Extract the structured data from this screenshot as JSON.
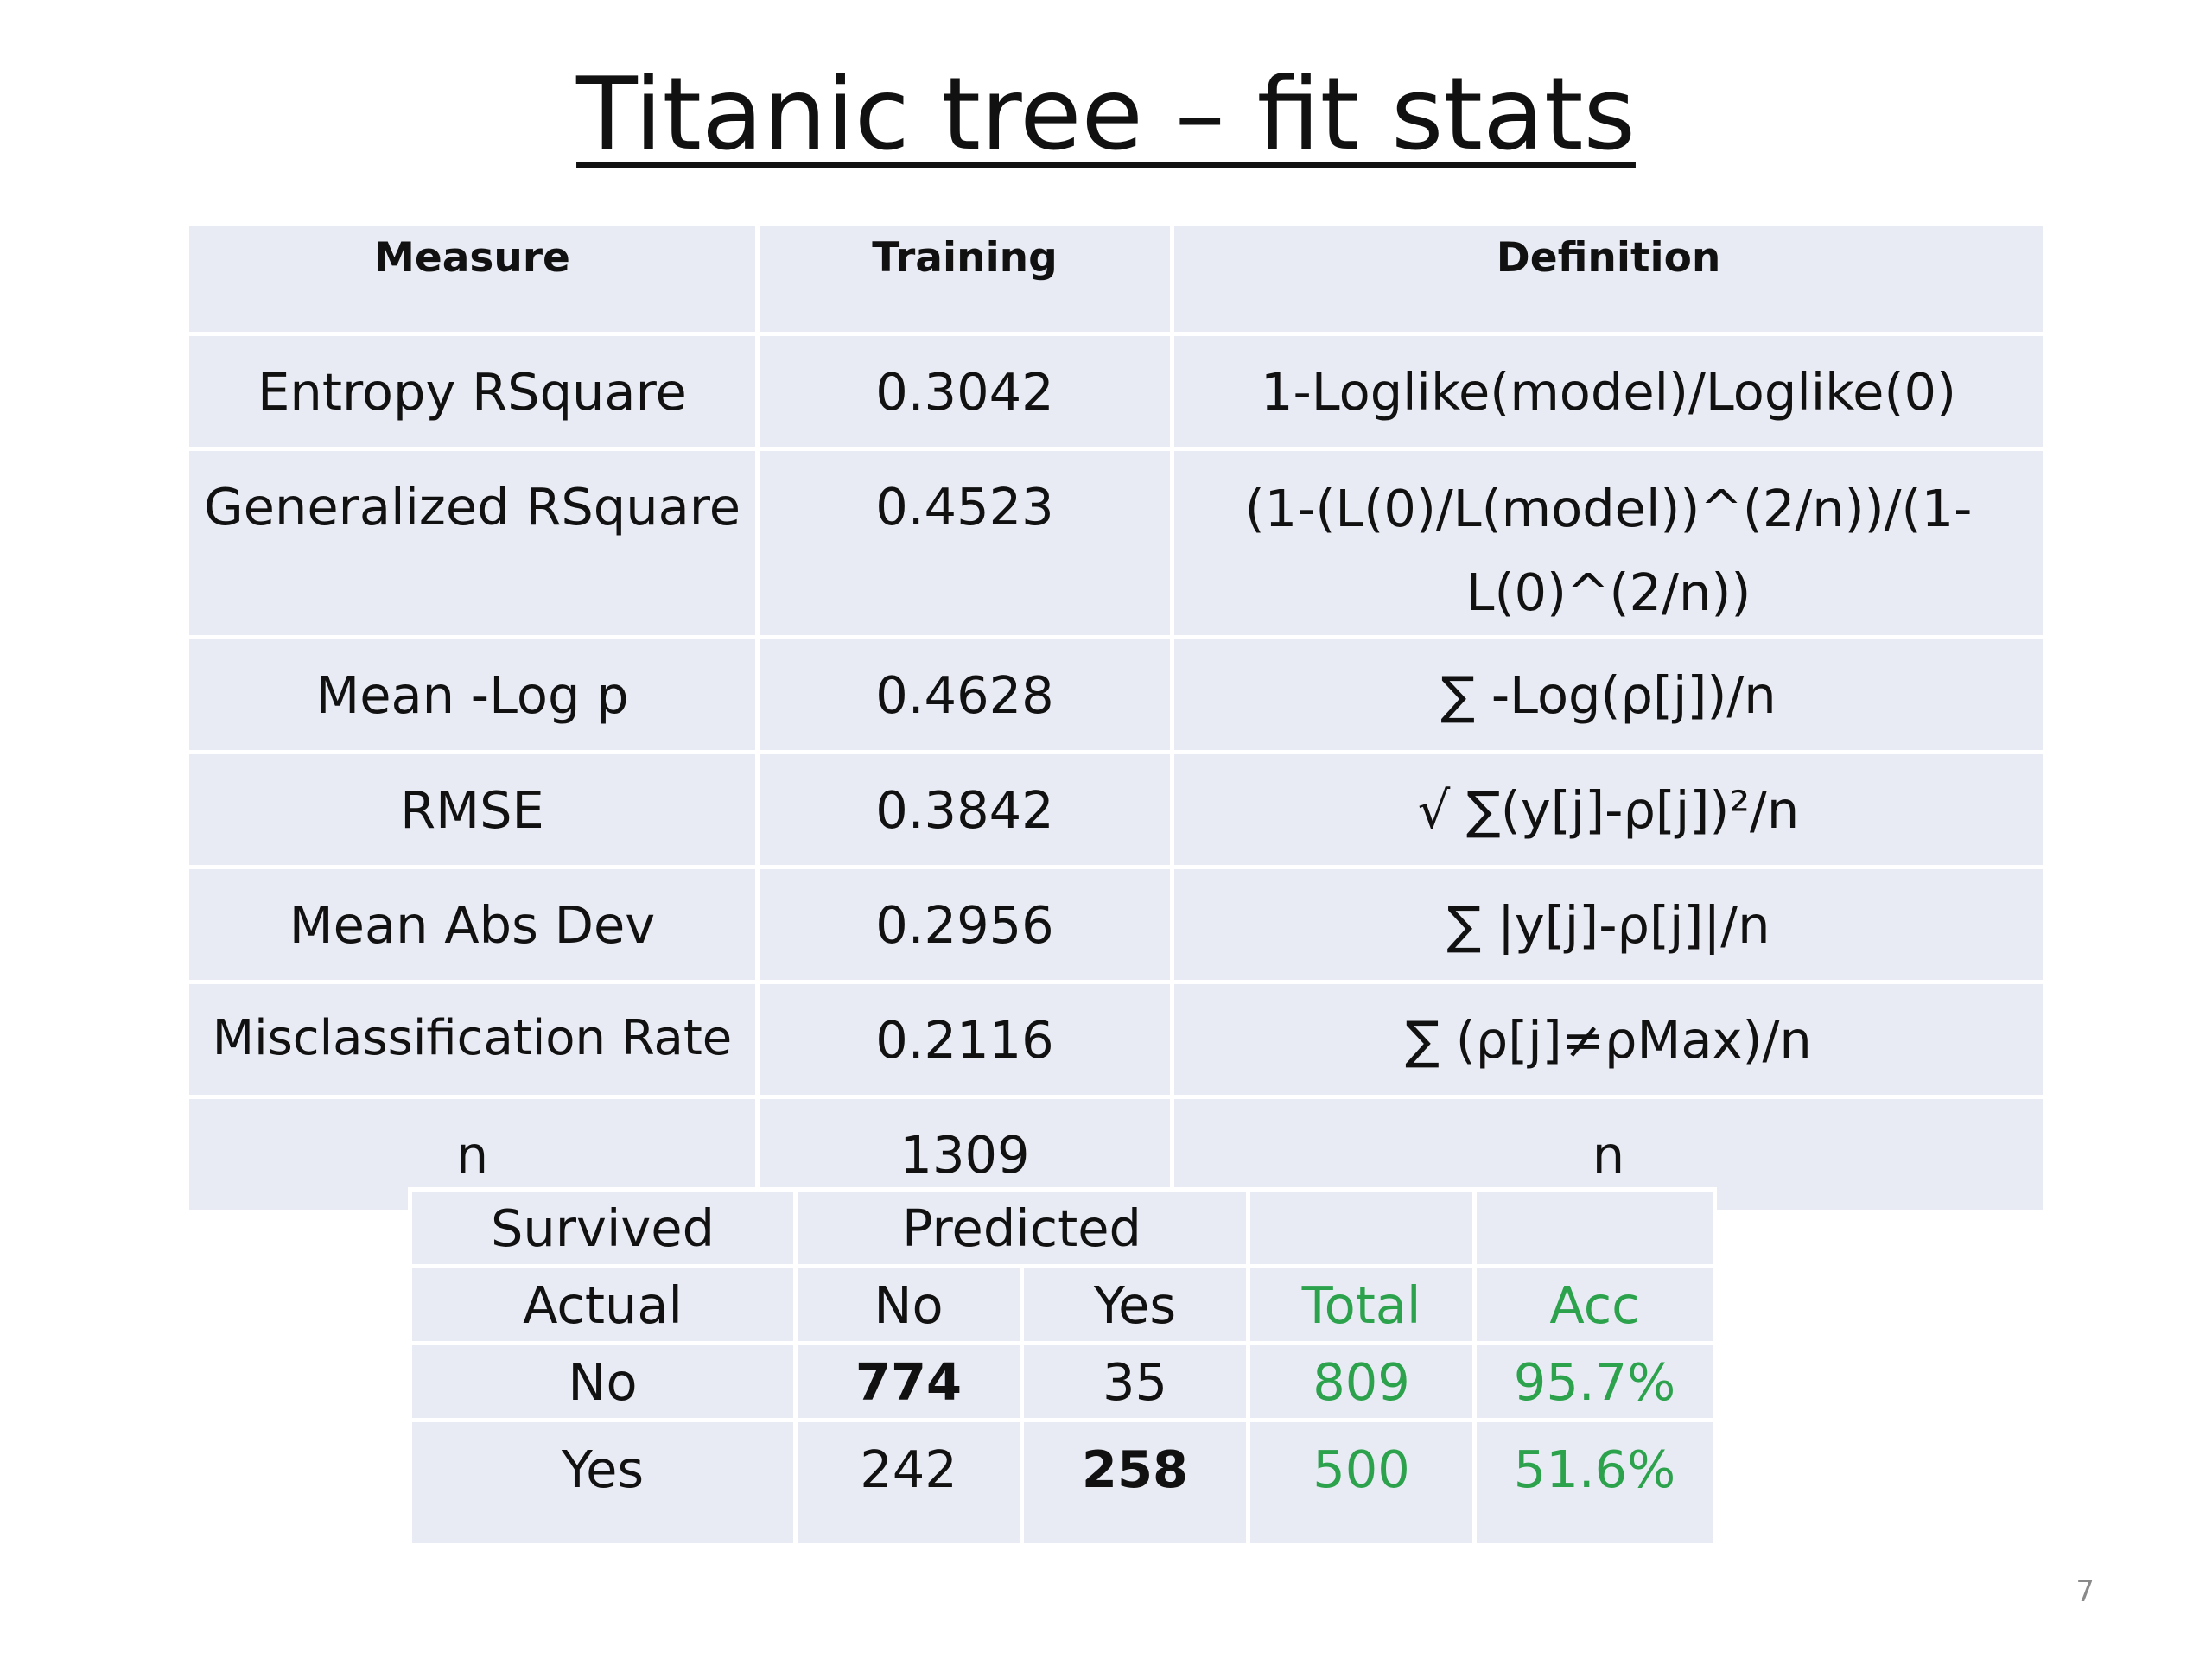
{
  "title": "Titanic tree – fit stats",
  "fit_table": {
    "headers": [
      "Measure",
      "Training",
      "Definition"
    ],
    "rows": [
      {
        "measure": "Entropy RSquare",
        "training": "0.3042",
        "definition": "1-Loglike(model)/Loglike(0)"
      },
      {
        "measure": "Generalized RSquare",
        "training": "0.4523",
        "definition": "(1-(L(0)/L(model))^(2/n))/(1-L(0)^(2/n))"
      },
      {
        "measure": "Mean -Log p",
        "training": "0.4628",
        "definition": "∑ -Log(ρ[j])/n"
      },
      {
        "measure": "RMSE",
        "training": "0.3842",
        "definition": "√ ∑(y[j]-ρ[j])²/n"
      },
      {
        "measure": "Mean Abs Dev",
        "training": "0.2956",
        "definition": "∑ |y[j]-ρ[j]|/n"
      },
      {
        "measure": "Misclassification Rate",
        "training": "0.2116",
        "definition": "∑ (ρ[j]≠ρMax)/n"
      },
      {
        "measure": "n",
        "training": "1309",
        "definition": "n"
      }
    ]
  },
  "confusion_table": {
    "survived_label": "Survived",
    "predicted_label": "Predicted",
    "actual_label": "Actual",
    "col_no": "No",
    "col_yes": "Yes",
    "total_label": "Total",
    "acc_label": "Acc",
    "rows": [
      {
        "actual": "No",
        "pred_no": "774",
        "pred_yes": "35",
        "total": "809",
        "acc": "95.7%"
      },
      {
        "actual": "Yes",
        "pred_no": "242",
        "pred_yes": "258",
        "total": "500",
        "acc": "51.6%"
      }
    ]
  },
  "page_number": "7",
  "colors": {
    "cell_background": "#e8ebf3",
    "accent_green": "#2ca24d"
  }
}
